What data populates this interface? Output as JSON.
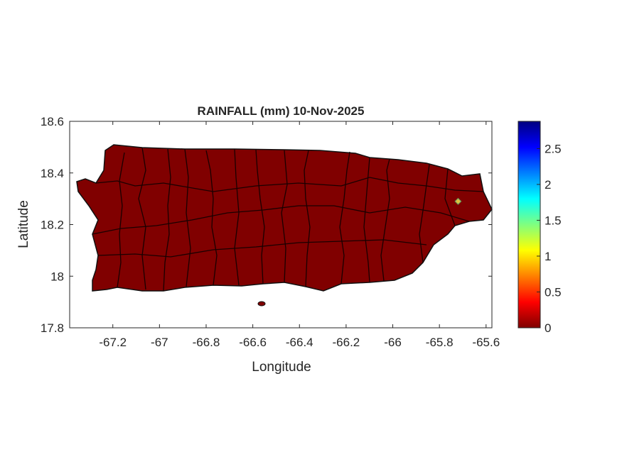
{
  "chart_data": {
    "type": "heatmap",
    "title": "RAINFALL (mm) 10-Nov-2025",
    "xlabel": "Longitude",
    "ylabel": "Latitude",
    "xlim": [
      -67.385,
      -65.575
    ],
    "ylim": [
      17.8,
      18.6
    ],
    "xticks": [
      "-67.2",
      "-67",
      "-66.8",
      "-66.6",
      "-66.4",
      "-66.2",
      "-66",
      "-65.8",
      "-65.6"
    ],
    "xtick_values": [
      -67.2,
      -67,
      -66.8,
      -66.6,
      -66.4,
      -66.2,
      -66,
      -65.8,
      -65.6
    ],
    "yticks": [
      "17.8",
      "18",
      "18.2",
      "18.4",
      "18.6"
    ],
    "ytick_values": [
      17.8,
      18,
      18.2,
      18.4,
      18.6
    ],
    "colorbar": {
      "colormap": "jet",
      "range": [
        0,
        2.88
      ],
      "ticks": [
        "0",
        "0.5",
        "1",
        "1.5",
        "2",
        "2.5"
      ],
      "tick_values": [
        0,
        0.5,
        1,
        1.5,
        2,
        2.5
      ]
    },
    "background_value": 0,
    "background_color": "#800000",
    "hotspots": [
      {
        "lon": -65.72,
        "lat": 18.29,
        "value": 1.0
      }
    ]
  }
}
